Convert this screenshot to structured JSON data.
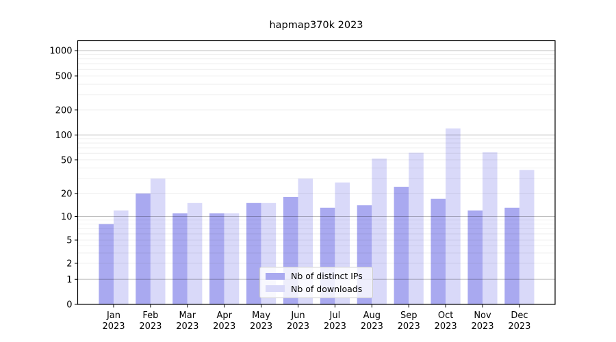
{
  "title": "hapmap370k 2023",
  "legend": {
    "items": [
      {
        "label": "Nb of distinct IPs",
        "color": "#a9a9f0"
      },
      {
        "label": "Nb of downloads",
        "color": "#d9d9f9"
      }
    ]
  },
  "chart_data": {
    "type": "bar",
    "title": "hapmap370k 2023",
    "categories": [
      "Jan 2023",
      "Feb 2023",
      "Mar 2023",
      "Apr 2023",
      "May 2023",
      "Jun 2023",
      "Jul 2023",
      "Aug 2023",
      "Sep 2023",
      "Oct 2023",
      "Nov 2023",
      "Dec 2023"
    ],
    "series": [
      {
        "name": "Nb of distinct IPs",
        "color": "#a9a9f0",
        "values": [
          8,
          20,
          11,
          11,
          15,
          18,
          13,
          14,
          24,
          17,
          12,
          13
        ]
      },
      {
        "name": "Nb of downloads",
        "color": "#d9d9f9",
        "values": [
          12,
          30,
          15,
          11,
          15,
          30,
          27,
          52,
          61,
          120,
          62,
          38
        ]
      }
    ],
    "xlabel": "",
    "ylabel": "",
    "yticks": [
      0,
      1,
      2,
      5,
      10,
      20,
      50,
      100,
      200,
      500,
      1000
    ],
    "yscale": "symlog",
    "ylim": [
      0,
      1400
    ],
    "grid": true,
    "legend_position": "lower center"
  }
}
